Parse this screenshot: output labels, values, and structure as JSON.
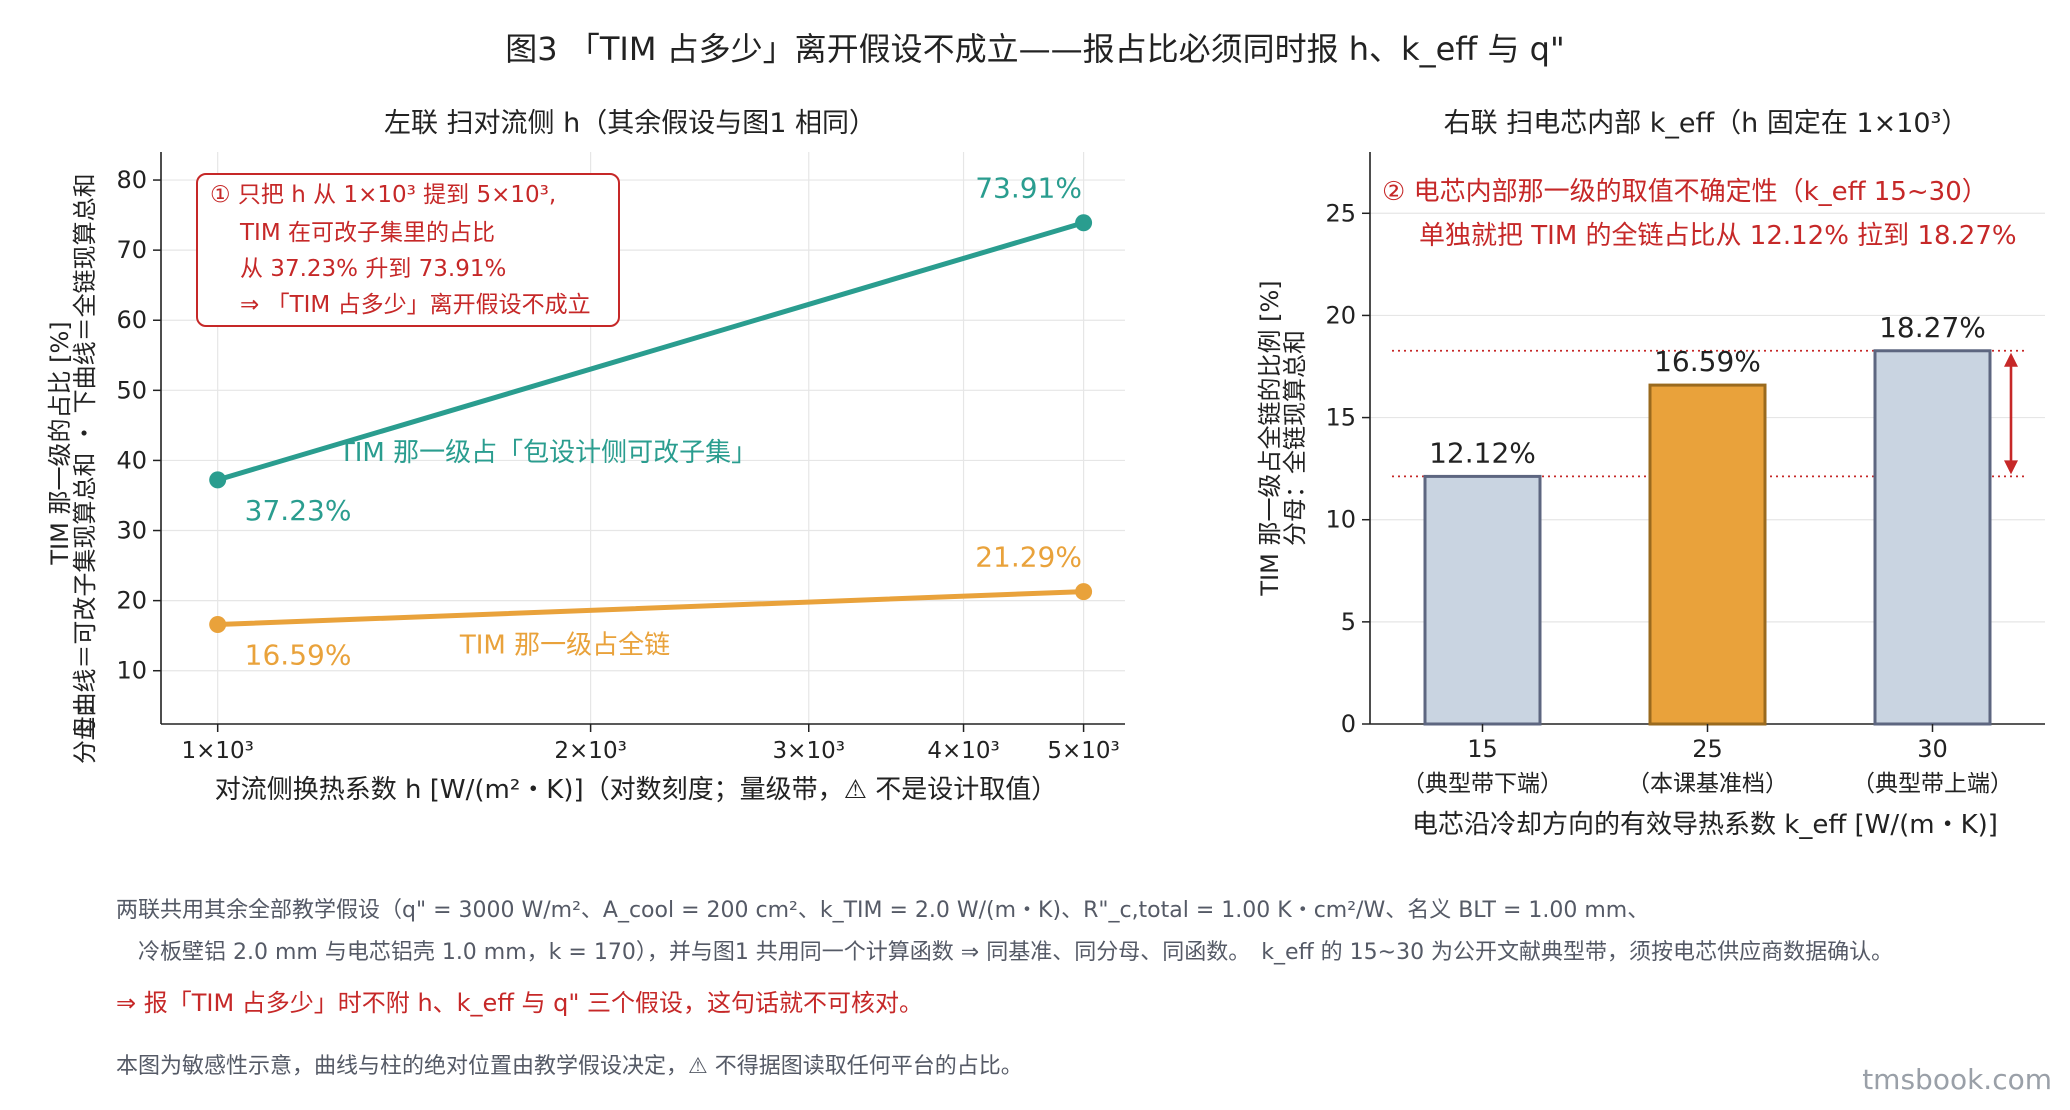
{
  "figure_title": "图3 「TIM 占多少」离开假设不成立——报占比必须同时报 h、k_eff 与 q\"",
  "colors": {
    "teal": "#2a9d8f",
    "orange": "#e9a23b",
    "red": "#c62828",
    "bar_gray_fill": "#c9d4e1",
    "bar_gray_edge": "#5d6680",
    "bar_orange_edge": "#9a6a1e",
    "grid": "#e6e6e6"
  },
  "chart_data": [
    {
      "type": "line",
      "panel_title": "左联 扫对流侧 h（其余假设与图1 相同）",
      "xlabel": "对流侧换热系数 h [W/(m²・K)]（对数刻度；量级带，⚠ 不是设计取值）",
      "ylabel_lines": [
        "TIM 那一级的占比 [%]",
        "上曲线＝可改子集现算总和 ・ 下曲线＝全链现算总和",
        "分母："
      ],
      "x_scale": "log",
      "xlim": [
        900,
        5400
      ],
      "ylim": [
        2.4,
        84
      ],
      "x_ticks": [
        1000,
        2000,
        3000,
        4000,
        5000
      ],
      "x_tick_labels": [
        "1×10³",
        "2×10³",
        "3×10³",
        "4×10³",
        "5×10³"
      ],
      "y_ticks": [
        10,
        20,
        30,
        40,
        50,
        60,
        70,
        80
      ],
      "y_tick_labels": [
        "10",
        "20",
        "30",
        "40",
        "50",
        "60",
        "70",
        "80"
      ],
      "grid": true,
      "series": [
        {
          "name": "TIM 那一级占「包设计侧可改子集」",
          "color": "#2a9d8f",
          "x": [
            1000,
            5000
          ],
          "y": [
            37.23,
            73.91
          ],
          "value_labels": [
            "37.23%",
            "73.91%"
          ]
        },
        {
          "name": "TIM 那一级占全链",
          "color": "#e9a23b",
          "x": [
            1000,
            5000
          ],
          "y": [
            16.59,
            21.29
          ],
          "value_labels": [
            "16.59%",
            "21.29%"
          ]
        }
      ],
      "annotation": {
        "lines": [
          "① 只把 h 从 1×10³ 提到 5×10³,",
          "TIM 在可改子集里的占比",
          "从 37.23% 升到 73.91%",
          "⇒ 「TIM 占多少」离开假设不成立"
        ],
        "color": "#c62828"
      }
    },
    {
      "type": "bar",
      "panel_title": "右联 扫电芯内部 k_eff（h 固定在 1×10³）",
      "xlabel": "电芯沿冷却方向的有效导热系数 k_eff [W/(m・K)]",
      "ylabel_lines": [
        "TIM 那一级占全链的比例 [%]",
        "分母：全链现算总和"
      ],
      "categories": [
        "15",
        "25",
        "30"
      ],
      "category_sublabels": [
        "（典型带下端）",
        "（本课基准档）",
        "（典型带上端）"
      ],
      "values": [
        12.12,
        16.59,
        18.27
      ],
      "value_labels": [
        "12.12%",
        "16.59%",
        "18.27%"
      ],
      "bar_colors": [
        "#c9d4e1",
        "#e9a23b",
        "#c9d4e1"
      ],
      "ylim": [
        0,
        28
      ],
      "y_ticks": [
        0,
        5,
        10,
        15,
        20,
        25
      ],
      "y_tick_labels": [
        "0",
        "5",
        "10",
        "15",
        "20",
        "25"
      ],
      "grid": true,
      "reference_lines": [
        12.12,
        18.27
      ],
      "annotation": {
        "lines": [
          "② 电芯内部那一级的取值不确定性（k_eff 15~30）",
          "单独就把 TIM 的全链占比从 12.12% 拉到 18.27%"
        ],
        "color": "#c62828"
      }
    }
  ],
  "notes": {
    "line1": "两联共用其余全部教学假设（q\" = 3000 W/m²、A_cool = 200 cm²、k_TIM = 2.0 W/(m・K)、R\"_c,total = 1.00 K・cm²/W、名义 BLT = 1.00 mm、",
    "line2": "冷板壁铝 2.0 mm 与电芯铝壳 1.0 mm，k = 170），并与图1 共用同一个计算函数 ⇒ 同基准、同分母、同函数。　k_eff 的 15~30 为公开文献典型带，须按电芯供应商数据确认。",
    "conclusion": "⇒ 报「TIM 占多少」时不附 h、k_eff 与 q\" 三个假设，这句话就不可核对。",
    "disclaimer": "本图为敏感性示意，曲线与柱的绝对位置由教学假设决定，⚠ 不得据图读取任何平台的占比。"
  },
  "watermark": "tmsbook.com"
}
